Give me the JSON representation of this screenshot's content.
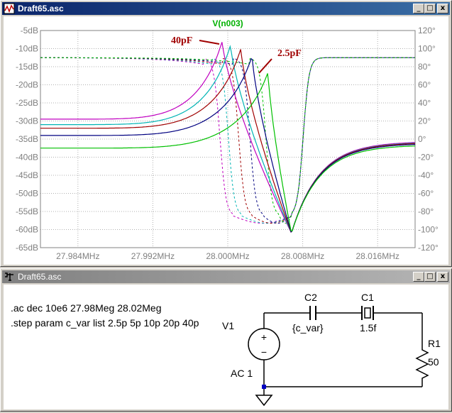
{
  "plot_window": {
    "title": "Draft65.asc",
    "buttons": [
      "_",
      "□",
      "x"
    ]
  },
  "schematic_window": {
    "title": "Draft65.asc",
    "buttons": [
      "_",
      "□",
      "x"
    ],
    "directives": [
      ".ac dec 10e6 27.98Meg 28.02Meg",
      ".step param c_var list 2.5p 5p 10p 20p 40p"
    ],
    "components": {
      "v1_name": "V1",
      "v1_value": "AC 1",
      "c2_name": "C2",
      "c2_value": "{c_var}",
      "c1_name": "C1",
      "c1_value": "1.5f",
      "r1_name": "R1",
      "r1_value": "50"
    }
  },
  "chart_data": {
    "type": "line",
    "title": "V(n003)",
    "x_unit": "MHz",
    "x_ticks": [
      "27.984MHz",
      "27.992MHz",
      "28.000MHz",
      "28.008MHz",
      "28.016MHz"
    ],
    "x_tick_values": [
      27.984,
      27.992,
      28.0,
      28.008,
      28.016
    ],
    "xlim": [
      27.98,
      28.02
    ],
    "y_left_ticks": [
      "-5dB",
      "-10dB",
      "-15dB",
      "-20dB",
      "-25dB",
      "-30dB",
      "-35dB",
      "-40dB",
      "-45dB",
      "-50dB",
      "-55dB",
      "-60dB",
      "-65dB"
    ],
    "y_left_values": [
      -5,
      -10,
      -15,
      -20,
      -25,
      -30,
      -35,
      -40,
      -45,
      -50,
      -55,
      -60,
      -65
    ],
    "y_right_ticks": [
      "120°",
      "100°",
      "80°",
      "60°",
      "40°",
      "20°",
      "0°",
      "-20°",
      "-40°",
      "-60°",
      "-80°",
      "-100°",
      "-120°"
    ],
    "y_right_values": [
      120,
      100,
      80,
      60,
      40,
      20,
      0,
      -20,
      -40,
      -60,
      -80,
      -100,
      -120
    ],
    "ylim_left": [
      -65,
      -5
    ],
    "ylim_right": [
      -120,
      120
    ],
    "grid": true,
    "annotations": [
      "40pF",
      "2.5pF"
    ],
    "f_antires": 28.0068,
    "series": [
      {
        "color": "#c000c0",
        "peak_f": 27.9994,
        "peak_db": -8,
        "low_db": -29.5
      },
      {
        "color": "#00b4b4",
        "peak_f": 28.0003,
        "peak_db": -9,
        "low_db": -31
      },
      {
        "color": "#a00000",
        "peak_f": 28.0014,
        "peak_db": -10,
        "low_db": -32
      },
      {
        "color": "#000080",
        "peak_f": 28.0026,
        "peak_db": -12,
        "low_db": -34
      },
      {
        "color": "#00c000",
        "peak_f": 28.0043,
        "peak_db": -16.5,
        "low_db": -37.5
      }
    ]
  }
}
